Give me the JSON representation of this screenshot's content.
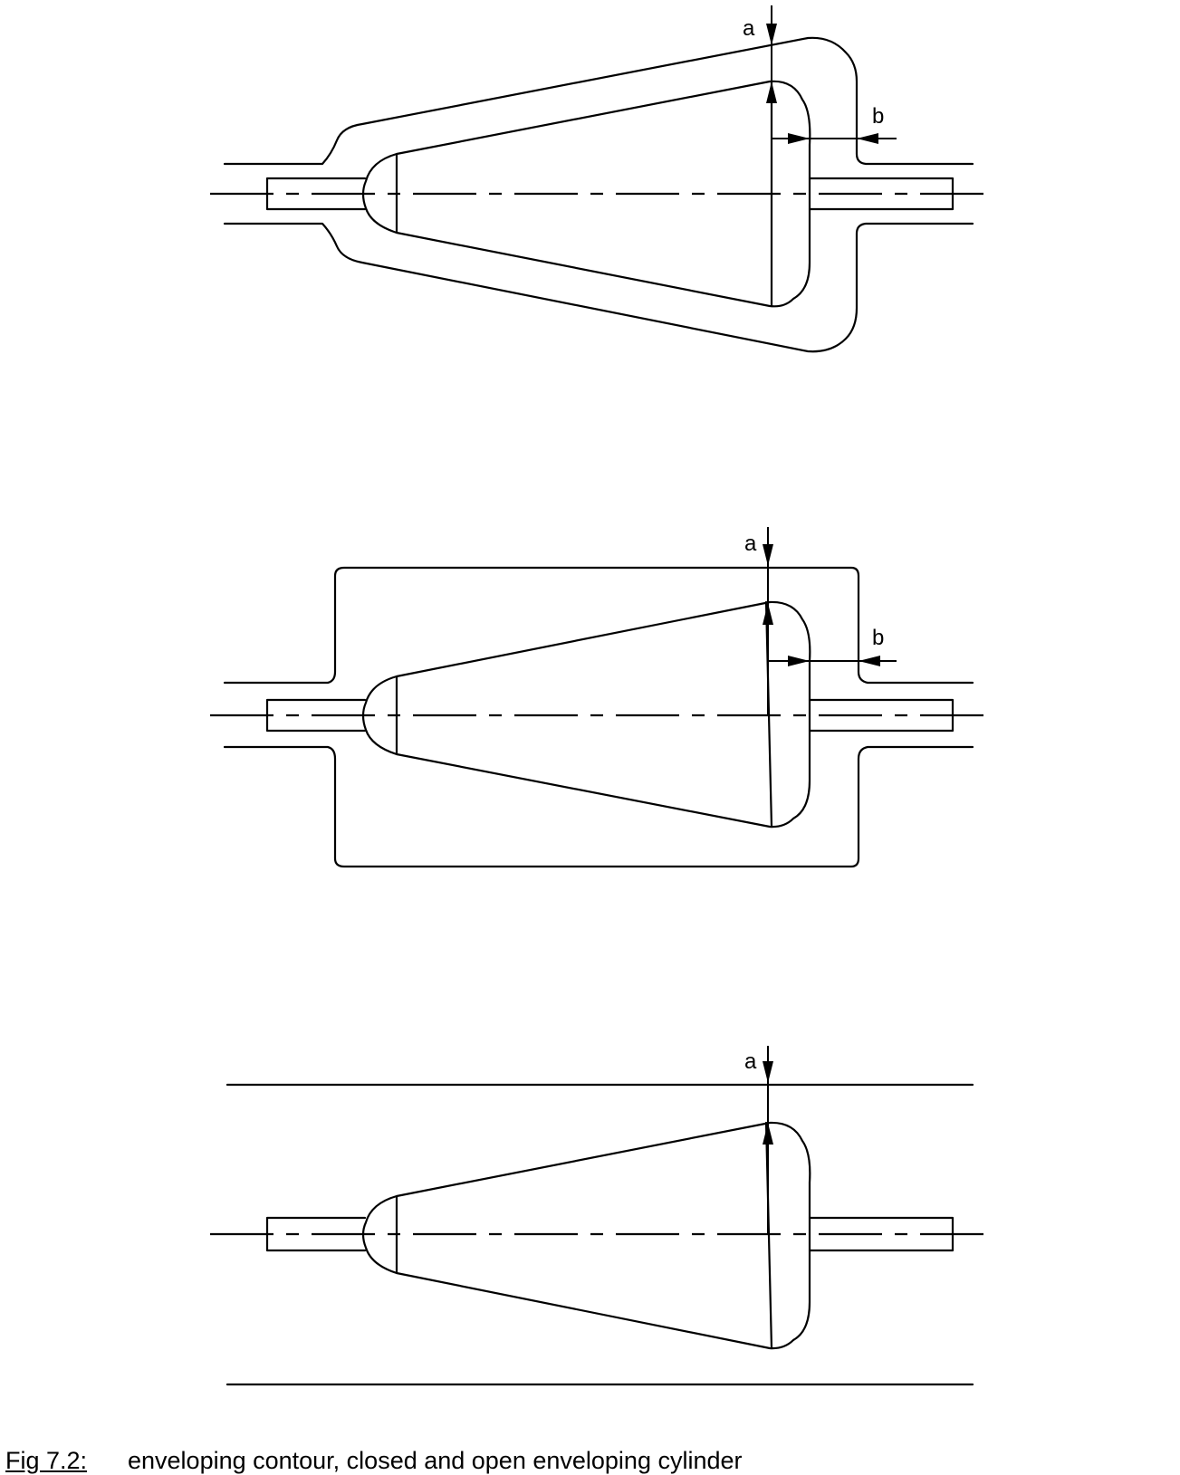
{
  "figures": [
    {
      "labels": {
        "a": "a",
        "b": "b"
      }
    },
    {
      "labels": {
        "a": "a",
        "b": "b"
      }
    },
    {
      "labels": {
        "a": "a"
      }
    }
  ],
  "caption": {
    "number": "Fig 7.2:",
    "text": "enveloping contour, closed and open enveloping cylinder"
  }
}
